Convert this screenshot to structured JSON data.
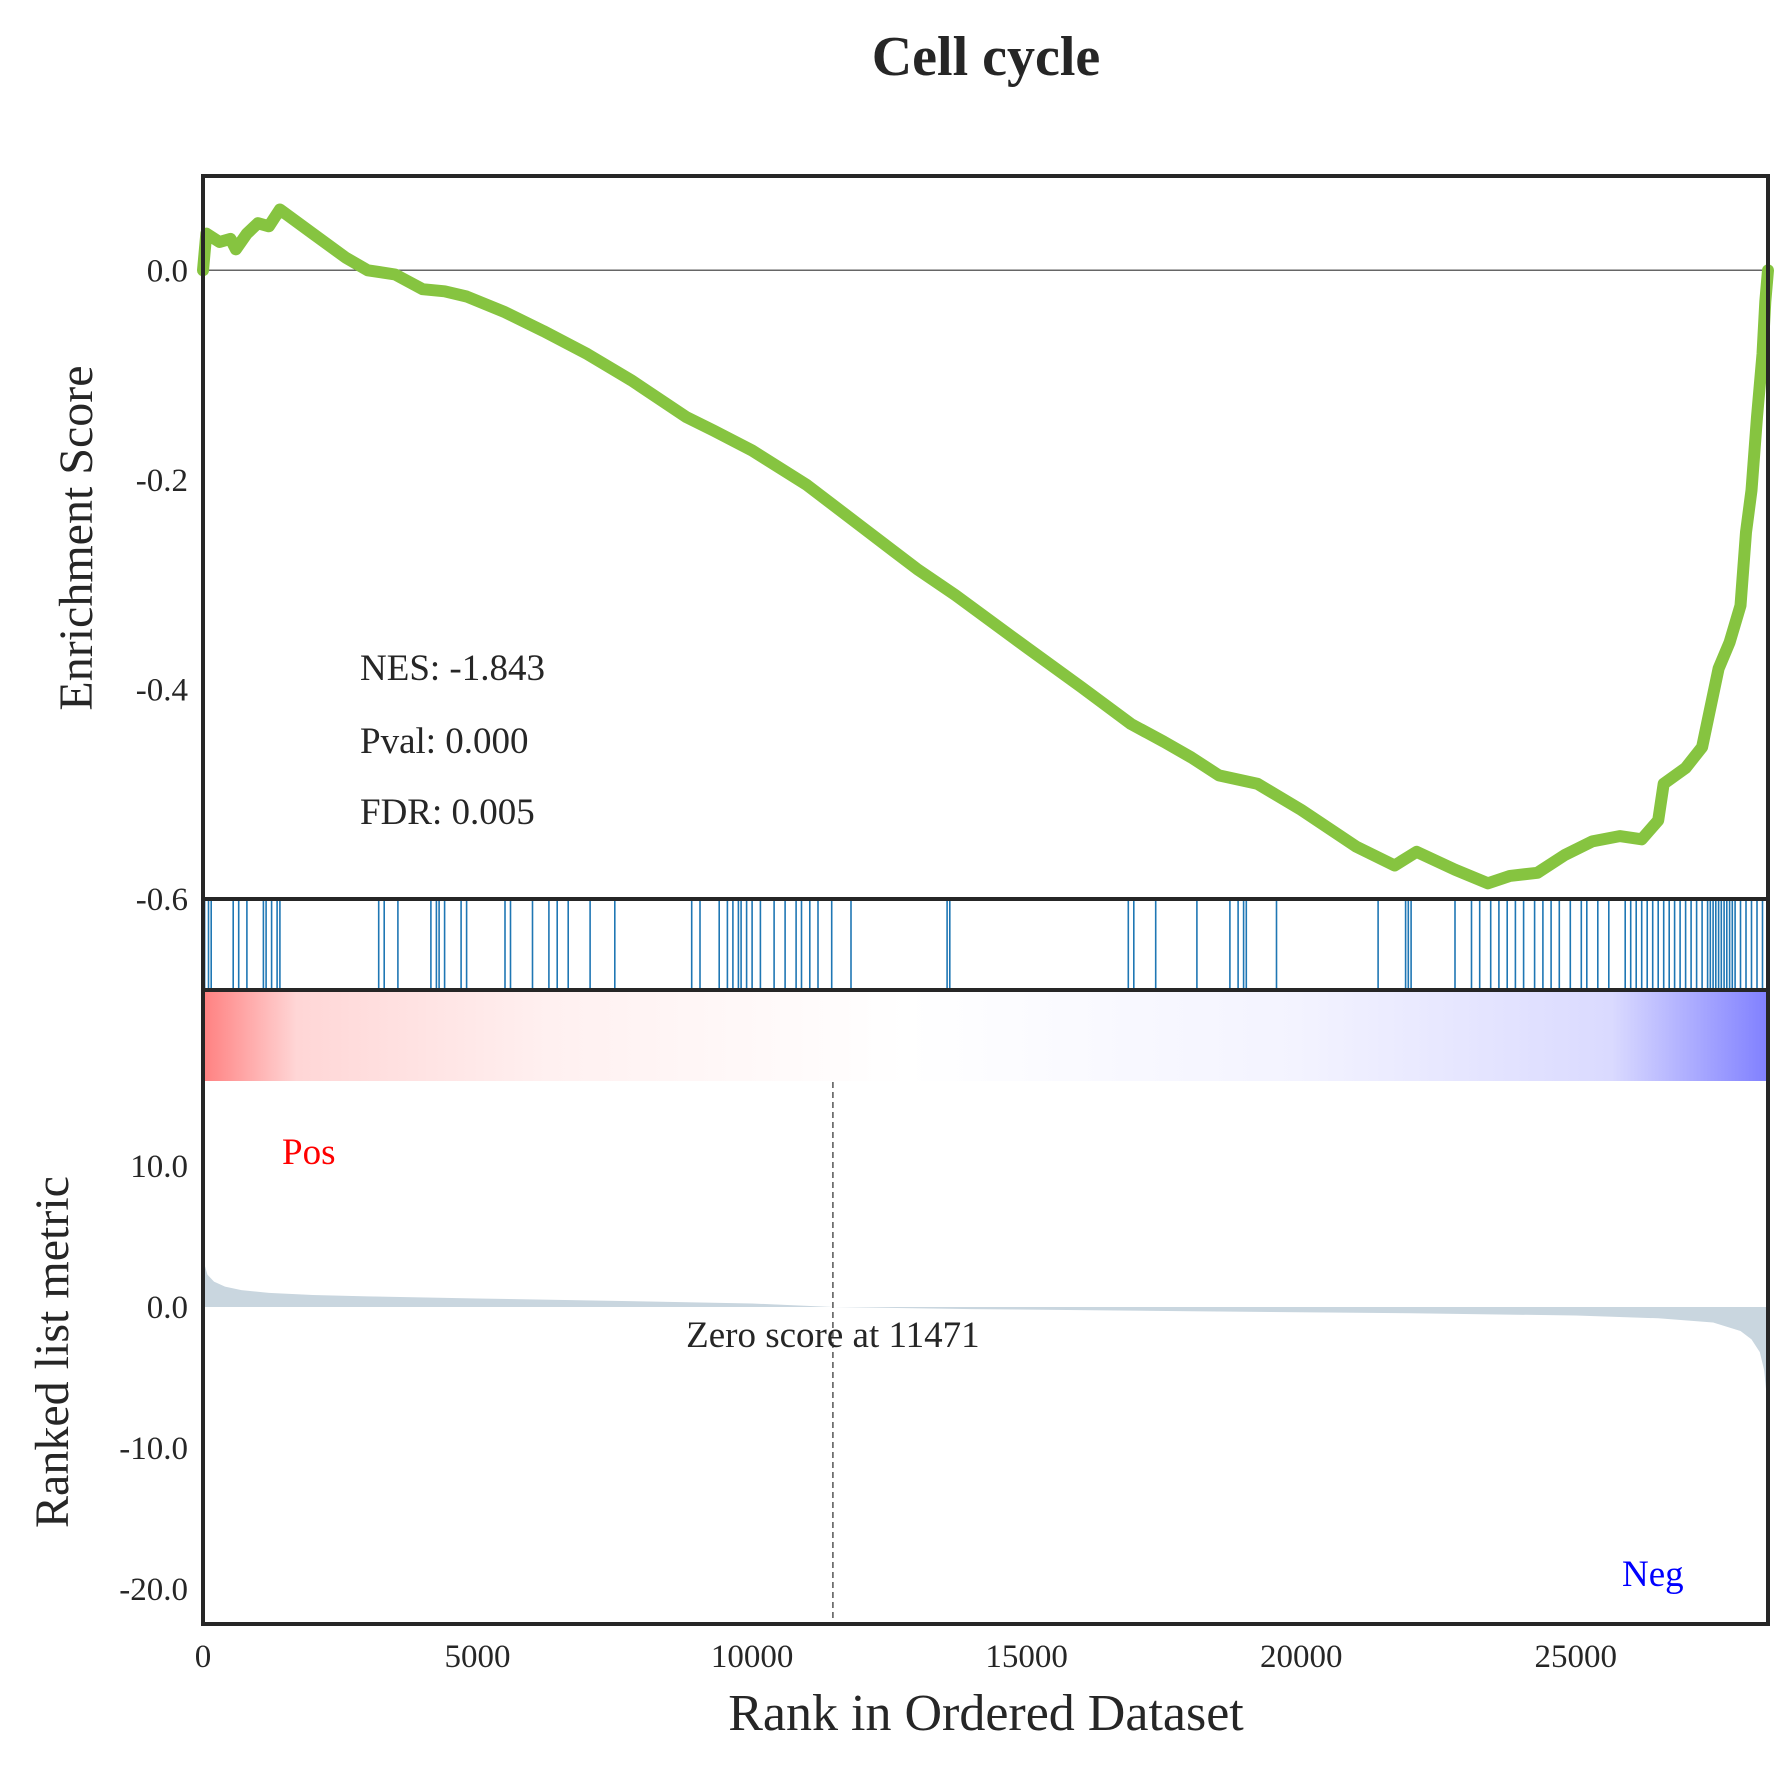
{
  "chart_data": {
    "type": "line",
    "title": "Cell cycle",
    "x_label": "Rank in Ordered Dataset",
    "x_range": [
      0,
      28500
    ],
    "x_ticks": [
      {
        "value": 0,
        "label": "0"
      },
      {
        "value": 5000,
        "label": "5000"
      },
      {
        "value": 10000,
        "label": "10000"
      },
      {
        "value": 15000,
        "label": "15000"
      },
      {
        "value": 20000,
        "label": "20000"
      },
      {
        "value": 25000,
        "label": "25000"
      }
    ],
    "enrichment": {
      "y_label": "Enrichment Score",
      "y_range": [
        -0.6,
        0.09
      ],
      "y_ticks": [
        {
          "value": 0.0,
          "label": "0.0"
        },
        {
          "value": -0.2,
          "label": "-0.2"
        },
        {
          "value": -0.4,
          "label": "-0.4"
        },
        {
          "value": -0.6,
          "label": "-0.6"
        }
      ],
      "line_color": "#86c440",
      "stats": [
        "NES: -1.843",
        "Pval: 0.000",
        "FDR: 0.005"
      ],
      "points": [
        [
          0,
          0.0
        ],
        [
          60,
          0.035
        ],
        [
          300,
          0.027
        ],
        [
          500,
          0.03
        ],
        [
          600,
          0.02
        ],
        [
          800,
          0.035
        ],
        [
          1000,
          0.045
        ],
        [
          1200,
          0.042
        ],
        [
          1300,
          0.05
        ],
        [
          1400,
          0.058
        ],
        [
          2000,
          0.035
        ],
        [
          2600,
          0.012
        ],
        [
          3000,
          0.0
        ],
        [
          3500,
          -0.004
        ],
        [
          4000,
          -0.018
        ],
        [
          4400,
          -0.02
        ],
        [
          4800,
          -0.025
        ],
        [
          5500,
          -0.04
        ],
        [
          6200,
          -0.058
        ],
        [
          7000,
          -0.08
        ],
        [
          7800,
          -0.105
        ],
        [
          8800,
          -0.14
        ],
        [
          9300,
          -0.153
        ],
        [
          10000,
          -0.172
        ],
        [
          11000,
          -0.205
        ],
        [
          12000,
          -0.245
        ],
        [
          13000,
          -0.285
        ],
        [
          13700,
          -0.31
        ],
        [
          15000,
          -0.36
        ],
        [
          16000,
          -0.398
        ],
        [
          16900,
          -0.433
        ],
        [
          17500,
          -0.45
        ],
        [
          18000,
          -0.465
        ],
        [
          18500,
          -0.482
        ],
        [
          19200,
          -0.49
        ],
        [
          20000,
          -0.515
        ],
        [
          21000,
          -0.55
        ],
        [
          21700,
          -0.568
        ],
        [
          22100,
          -0.555
        ],
        [
          22800,
          -0.572
        ],
        [
          23400,
          -0.585
        ],
        [
          23800,
          -0.578
        ],
        [
          24300,
          -0.575
        ],
        [
          24800,
          -0.558
        ],
        [
          25300,
          -0.545
        ],
        [
          25800,
          -0.54
        ],
        [
          26200,
          -0.543
        ],
        [
          26500,
          -0.525
        ],
        [
          26600,
          -0.49
        ],
        [
          27000,
          -0.475
        ],
        [
          27300,
          -0.455
        ],
        [
          27600,
          -0.38
        ],
        [
          27800,
          -0.355
        ],
        [
          28000,
          -0.32
        ],
        [
          28100,
          -0.25
        ],
        [
          28200,
          -0.21
        ],
        [
          28300,
          -0.14
        ],
        [
          28400,
          -0.08
        ],
        [
          28450,
          -0.03
        ],
        [
          28500,
          0.0
        ]
      ]
    },
    "hits": {
      "color": "#1f77b4",
      "positions": [
        30,
        100,
        150,
        550,
        650,
        800,
        1100,
        1150,
        1250,
        1350,
        1400,
        3200,
        3300,
        3550,
        4150,
        4250,
        4300,
        4400,
        4700,
        4800,
        5500,
        5600,
        6000,
        6300,
        6450,
        6650,
        7050,
        7500,
        8900,
        9050,
        9400,
        9550,
        9650,
        9750,
        9800,
        9900,
        10000,
        10150,
        10400,
        10600,
        10800,
        10900,
        11050,
        11200,
        11450,
        11800,
        13550,
        13600,
        16850,
        16950,
        17350,
        18100,
        18700,
        18850,
        18950,
        19000,
        19550,
        21400,
        21900,
        21950,
        22000,
        22800,
        23100,
        23250,
        23450,
        23600,
        23750,
        23900,
        24050,
        24250,
        24400,
        24550,
        24700,
        24900,
        25100,
        25200,
        25400,
        25600,
        25900,
        26000,
        26100,
        26200,
        26300,
        26400,
        26500,
        26600,
        26700,
        26800,
        26900,
        27000,
        27100,
        27200,
        27300,
        27400,
        27450,
        27500,
        27550,
        27600,
        27650,
        27700,
        27750,
        27800,
        27850,
        27900,
        28000,
        28100,
        28200,
        28300,
        28400,
        28480
      ]
    },
    "ranked_metric": {
      "y_label": "Ranked list metric",
      "y_range": [
        -22.5,
        22.5
      ],
      "y_ticks": [
        {
          "value": 10,
          "label": "10.0"
        },
        {
          "value": 0,
          "label": "0.0"
        },
        {
          "value": -10,
          "label": "-10.0"
        },
        {
          "value": -20,
          "label": "-20.0"
        }
      ],
      "fill_color": "#c9d6df",
      "zero_score_rank": 11471,
      "zero_score_label": "Zero score at 11471",
      "pos_label": "Pos",
      "neg_label": "Neg",
      "pos_color": "#ff0000",
      "neg_color": "#0000ff",
      "points": [
        [
          0,
          4.2
        ],
        [
          30,
          3.0
        ],
        [
          80,
          2.3
        ],
        [
          200,
          1.8
        ],
        [
          400,
          1.45
        ],
        [
          700,
          1.2
        ],
        [
          1200,
          1.0
        ],
        [
          2000,
          0.85
        ],
        [
          3000,
          0.75
        ],
        [
          5000,
          0.6
        ],
        [
          8000,
          0.4
        ],
        [
          10000,
          0.25
        ],
        [
          11471,
          0.0
        ],
        [
          14000,
          -0.15
        ],
        [
          18000,
          -0.3
        ],
        [
          22000,
          -0.45
        ],
        [
          25000,
          -0.6
        ],
        [
          26500,
          -0.8
        ],
        [
          27500,
          -1.1
        ],
        [
          28000,
          -1.7
        ],
        [
          28200,
          -2.3
        ],
        [
          28350,
          -3.2
        ],
        [
          28430,
          -4.5
        ],
        [
          28480,
          -6.5
        ],
        [
          28500,
          -8.0
        ]
      ]
    },
    "heatmap": {
      "start_color": "#ff8080",
      "mid_color": "#ffffff",
      "end_color": "#8080ff"
    }
  }
}
